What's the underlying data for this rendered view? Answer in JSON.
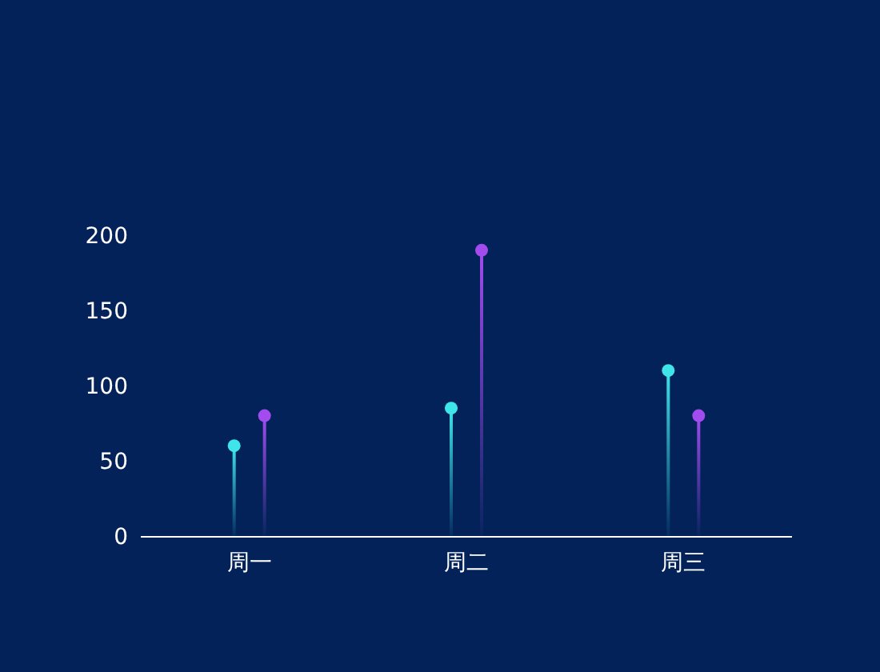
{
  "chart_data": {
    "type": "lollipop",
    "categories": [
      "周一",
      "周二",
      "周三"
    ],
    "series": [
      {
        "color": "#3ee6ea",
        "values": [
          60,
          85,
          110
        ]
      },
      {
        "color": "#a24cf0",
        "values": [
          80,
          190,
          80
        ]
      }
    ],
    "ylim": [
      0,
      200
    ],
    "yticks": [
      0,
      50,
      100,
      150,
      200
    ],
    "grid": false,
    "marker": "circle"
  }
}
